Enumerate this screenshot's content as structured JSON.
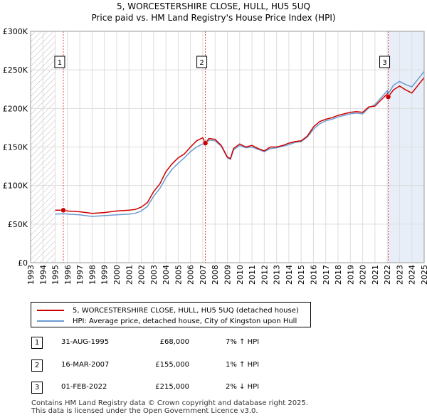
{
  "chart_data": {
    "type": "line",
    "title": "5, WORCESTERSHIRE CLOSE, HULL, HU5 5UQ",
    "subtitle": "Price paid vs. HM Land Registry's House Price Index (HPI)",
    "xlabel": "",
    "ylabel": "",
    "xlim": [
      1993,
      2025
    ],
    "ylim": [
      0,
      300000
    ],
    "y_ticks": [
      0,
      50000,
      100000,
      150000,
      200000,
      250000,
      300000
    ],
    "y_tick_labels": [
      "£0",
      "£50K",
      "£100K",
      "£150K",
      "£200K",
      "£250K",
      "£300K"
    ],
    "x_ticks": [
      1993,
      1994,
      1995,
      1996,
      1997,
      1998,
      1999,
      2000,
      2001,
      2002,
      2003,
      2004,
      2005,
      2006,
      2007,
      2008,
      2009,
      2010,
      2011,
      2012,
      2013,
      2014,
      2015,
      2016,
      2017,
      2018,
      2019,
      2020,
      2021,
      2022,
      2023,
      2024,
      2025
    ],
    "x_tick_labels": [
      "1993",
      "1994",
      "1995",
      "1996",
      "1997",
      "1998",
      "1999",
      "2000",
      "2001",
      "2002",
      "2003",
      "2004",
      "2005",
      "2006",
      "2007",
      "2008",
      "2009",
      "2010",
      "2011",
      "2012",
      "2013",
      "2014",
      "2015",
      "2016",
      "2017",
      "2018",
      "2019",
      "2020",
      "2021",
      "2022",
      "2023",
      "2024",
      "2025"
    ],
    "hatched_until": 1995.0,
    "grid": true,
    "colors": {
      "property": "#cc0000",
      "hpi": "#6a9bd1",
      "marker_line": "#dd4444",
      "shade": "#e8eef8"
    },
    "series": [
      {
        "name": "5, WORCESTERSHIRE CLOSE, HULL, HU5 5UQ (detached house)",
        "color": "#cc0000",
        "x": [
          1995.0,
          1995.66,
          1996.0,
          1997.0,
          1998.0,
          1999.0,
          2000.0,
          2001.0,
          2001.5,
          2002.0,
          2002.5,
          2003.0,
          2003.5,
          2004.0,
          2004.5,
          2005.0,
          2005.5,
          2006.0,
          2006.5,
          2007.0,
          2007.21,
          2007.5,
          2008.0,
          2008.5,
          2009.0,
          2009.25,
          2009.5,
          2010.0,
          2010.5,
          2011.0,
          2011.5,
          2012.0,
          2012.5,
          2013.0,
          2013.5,
          2014.0,
          2014.5,
          2015.0,
          2015.5,
          2016.0,
          2016.5,
          2017.0,
          2017.5,
          2018.0,
          2018.5,
          2019.0,
          2019.5,
          2020.0,
          2020.5,
          2021.0,
          2021.5,
          2022.0,
          2022.08,
          2022.5,
          2023.0,
          2023.5,
          2024.0,
          2024.5,
          2025.0
        ],
        "values": [
          68000,
          68000,
          67000,
          66000,
          64000,
          65000,
          67000,
          68000,
          69000,
          72000,
          78000,
          92000,
          102000,
          118000,
          128000,
          136000,
          141000,
          150000,
          158000,
          162000,
          155000,
          161000,
          160000,
          152000,
          137000,
          135000,
          148000,
          154000,
          150000,
          152000,
          148000,
          145000,
          150000,
          150000,
          152000,
          155000,
          157000,
          158000,
          164000,
          176000,
          183000,
          186000,
          188000,
          191000,
          193000,
          195000,
          196000,
          195000,
          202000,
          203000,
          211000,
          219000,
          215000,
          224000,
          229000,
          224000,
          220000,
          230000,
          240000
        ]
      },
      {
        "name": "HPI: Average price, detached house, City of Kingston upon Hull",
        "color": "#6a9bd1",
        "x": [
          1995.0,
          1995.66,
          1996.0,
          1997.0,
          1998.0,
          1999.0,
          2000.0,
          2001.0,
          2001.5,
          2002.0,
          2002.5,
          2003.0,
          2003.5,
          2004.0,
          2004.5,
          2005.0,
          2005.5,
          2006.0,
          2006.5,
          2007.0,
          2007.21,
          2007.5,
          2008.0,
          2008.5,
          2009.0,
          2009.25,
          2009.5,
          2010.0,
          2010.5,
          2011.0,
          2011.5,
          2012.0,
          2012.5,
          2013.0,
          2013.5,
          2014.0,
          2014.5,
          2015.0,
          2015.5,
          2016.0,
          2016.5,
          2017.0,
          2017.5,
          2018.0,
          2018.5,
          2019.0,
          2019.5,
          2020.0,
          2020.5,
          2021.0,
          2021.5,
          2022.0,
          2022.08,
          2022.5,
          2023.0,
          2023.5,
          2024.0,
          2024.5,
          2025.0
        ],
        "values": [
          63000,
          63500,
          63000,
          62000,
          60000,
          61000,
          62000,
          63000,
          64000,
          67000,
          73000,
          86000,
          96000,
          110000,
          121000,
          129000,
          136000,
          144000,
          150000,
          154000,
          153000,
          159000,
          158000,
          151000,
          136000,
          134000,
          146000,
          152000,
          149000,
          150000,
          147000,
          144000,
          148000,
          149000,
          151000,
          153000,
          156000,
          157000,
          163000,
          173000,
          180000,
          184000,
          186000,
          189000,
          191000,
          193000,
          194000,
          193000,
          201000,
          205000,
          214000,
          223000,
          219000,
          230000,
          235000,
          231000,
          228000,
          238000,
          248000
        ]
      }
    ],
    "sales": [
      {
        "id": "1",
        "x": 1995.66,
        "value": 68000
      },
      {
        "id": "2",
        "x": 2007.21,
        "value": 155000
      },
      {
        "id": "3",
        "x": 2022.08,
        "value": 215000
      }
    ]
  },
  "legend": {
    "property_label": "5, WORCESTERSHIRE CLOSE, HULL, HU5 5UQ (detached house)",
    "hpi_label": "HPI: Average price, detached house, City of Kingston upon Hull"
  },
  "transactions": [
    {
      "num": "1",
      "date": "31-AUG-1995",
      "price": "£68,000",
      "hpi": "7% ↑ HPI"
    },
    {
      "num": "2",
      "date": "16-MAR-2007",
      "price": "£155,000",
      "hpi": "1% ↑ HPI"
    },
    {
      "num": "3",
      "date": "01-FEB-2022",
      "price": "£215,000",
      "hpi": "2% ↓ HPI"
    }
  ],
  "footer": {
    "line1": "Contains HM Land Registry data © Crown copyright and database right 2025.",
    "line2": "This data is licensed under the Open Government Licence v3.0."
  }
}
